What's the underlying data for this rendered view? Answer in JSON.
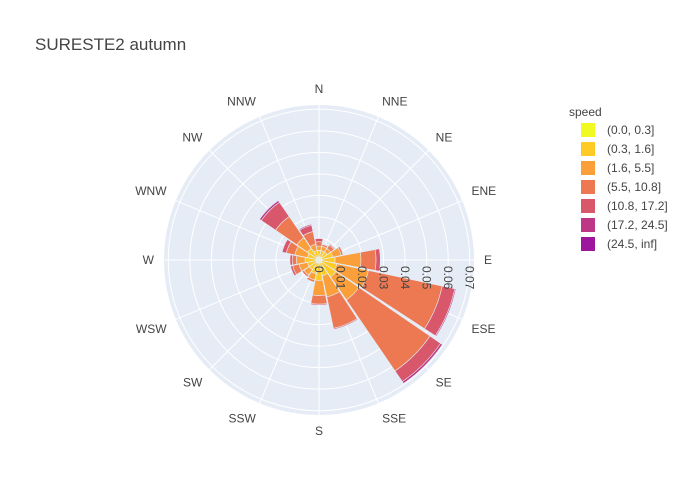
{
  "chart_data": {
    "type": "barpolar",
    "title": "SURESTE2 autumn",
    "directions": [
      "N",
      "NNE",
      "NE",
      "ENE",
      "E",
      "ESE",
      "SE",
      "SSE",
      "S",
      "SSW",
      "SW",
      "WSW",
      "W",
      "WNW",
      "NW",
      "NNW"
    ],
    "radial_ticks": [
      "0",
      "0.01",
      "0.02",
      "0.03",
      "0.04",
      "0.05",
      "0.06",
      "0.07"
    ],
    "radial_range": [
      0,
      0.072
    ],
    "legend_title": "speed",
    "legend_position": "right",
    "series": [
      {
        "name": "(0.0, 0.3]",
        "color": "#f0f921",
        "values": [
          0.0015,
          0.0015,
          0.0015,
          0.0015,
          0.0015,
          0.0015,
          0.0015,
          0.0015,
          0.0015,
          0.0015,
          0.0015,
          0.0015,
          0.0015,
          0.0015,
          0.0015,
          0.0015
        ]
      },
      {
        "name": "(0.3, 1.6]",
        "color": "#fdca26",
        "values": [
          0.003,
          0.003,
          0.003,
          0.005,
          0.006,
          0.007,
          0.008,
          0.006,
          0.008,
          0.005,
          0.004,
          0.004,
          0.005,
          0.004,
          0.005,
          0.003
        ]
      },
      {
        "name": "(1.6, 5.5]",
        "color": "#fb9f3a",
        "values": [
          0.002,
          0.002,
          0.002,
          0.004,
          0.012,
          0.015,
          0.013,
          0.01,
          0.007,
          0.003,
          0.003,
          0.004,
          0.004,
          0.006,
          0.006,
          0.003
        ]
      },
      {
        "name": "(5.5, 10.8]",
        "color": "#ed7953",
        "values": [
          0.002,
          0.001,
          0.002,
          0.001,
          0.007,
          0.035,
          0.04,
          0.015,
          0.004,
          0.001,
          0.001,
          0.003,
          0.002,
          0.004,
          0.012,
          0.006
        ]
      },
      {
        "name": "(10.8, 17.2]",
        "color": "#d8576b",
        "values": [
          0.0015,
          0.0003,
          0.0005,
          0.0002,
          0.002,
          0.006,
          0.006,
          0.0005,
          0.0005,
          0,
          0,
          0.001,
          0.001,
          0.002,
          0.008,
          0.003
        ]
      },
      {
        "name": "(17.2, 24.5]",
        "color": "#bd3786",
        "values": [
          0,
          0,
          0,
          0,
          0,
          0.0005,
          0.001,
          0,
          0,
          0,
          0,
          0,
          0,
          0,
          0.001,
          0.0005
        ]
      },
      {
        "name": "(24.5, inf]",
        "color": "#9c179e",
        "values": [
          0,
          0,
          0,
          0,
          0,
          0,
          0,
          0,
          0,
          0,
          0,
          0,
          0,
          0,
          0.0003,
          0
        ]
      }
    ]
  }
}
